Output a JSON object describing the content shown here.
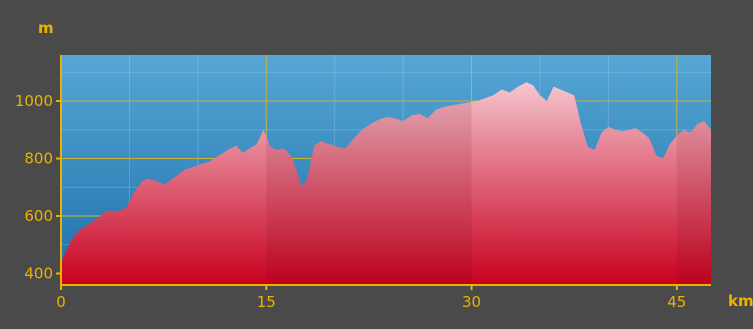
{
  "chart_data": {
    "type": "area",
    "title": "",
    "xlabel": "km",
    "ylabel": "m",
    "xlim": [
      0,
      47.5
    ],
    "ylim": [
      360,
      1160
    ],
    "x_ticks": [
      0,
      15,
      30,
      45
    ],
    "y_ticks": [
      400,
      600,
      800,
      1000
    ],
    "x_minor_ticks": [
      5,
      10,
      20,
      25,
      35,
      40
    ],
    "y_minor_ticks": [
      500,
      700,
      900,
      1100
    ],
    "grid": true,
    "legend": "none",
    "series": [
      {
        "x": [
          0,
          0.3,
          0.7,
          1.2,
          1.8,
          2.3,
          2.9,
          3.4,
          3.9,
          4.4,
          4.8,
          5.3,
          5.9,
          6.4,
          7.0,
          7.6,
          8.3,
          9.0,
          9.6,
          10.2,
          10.9,
          11.5,
          12.2,
          12.8,
          13.3,
          13.8,
          14.3,
          14.8,
          15.3,
          15.8,
          16.3,
          16.8,
          17.2,
          17.6,
          18.0,
          18.5,
          19.0,
          19.6,
          20.2,
          20.8,
          21.4,
          22.0,
          22.6,
          23.2,
          23.8,
          24.4,
          25.0,
          25.6,
          26.2,
          26.8,
          27.4,
          28.0,
          28.6,
          29.2,
          29.8,
          30.4,
          31.0,
          31.6,
          32.2,
          32.8,
          33.4,
          34.0,
          34.5,
          35.0,
          35.5,
          36.0,
          36.5,
          37.0,
          37.5,
          38.0,
          38.5,
          39.0,
          39.5,
          40.0,
          40.5,
          41.0,
          41.5,
          42.0,
          42.5,
          43.0,
          43.5,
          44.0,
          44.5,
          45.0,
          45.5,
          46.0,
          46.5,
          47.0,
          47.5
        ],
        "values": [
          440,
          470,
          510,
          545,
          565,
          580,
          600,
          620,
          615,
          620,
          630,
          680,
          720,
          730,
          720,
          710,
          735,
          760,
          770,
          780,
          790,
          810,
          830,
          845,
          820,
          835,
          850,
          900,
          840,
          830,
          835,
          810,
          760,
          700,
          730,
          845,
          860,
          850,
          840,
          835,
          870,
          900,
          920,
          935,
          945,
          940,
          930,
          950,
          955,
          940,
          970,
          980,
          985,
          990,
          995,
          1000,
          1010,
          1020,
          1040,
          1030,
          1050,
          1065,
          1055,
          1020,
          1000,
          1050,
          1040,
          1030,
          1020,
          920,
          840,
          830,
          890,
          910,
          900,
          895,
          900,
          905,
          890,
          870,
          810,
          800,
          850,
          880,
          900,
          890,
          920,
          930,
          900
        ]
      }
    ]
  }
}
